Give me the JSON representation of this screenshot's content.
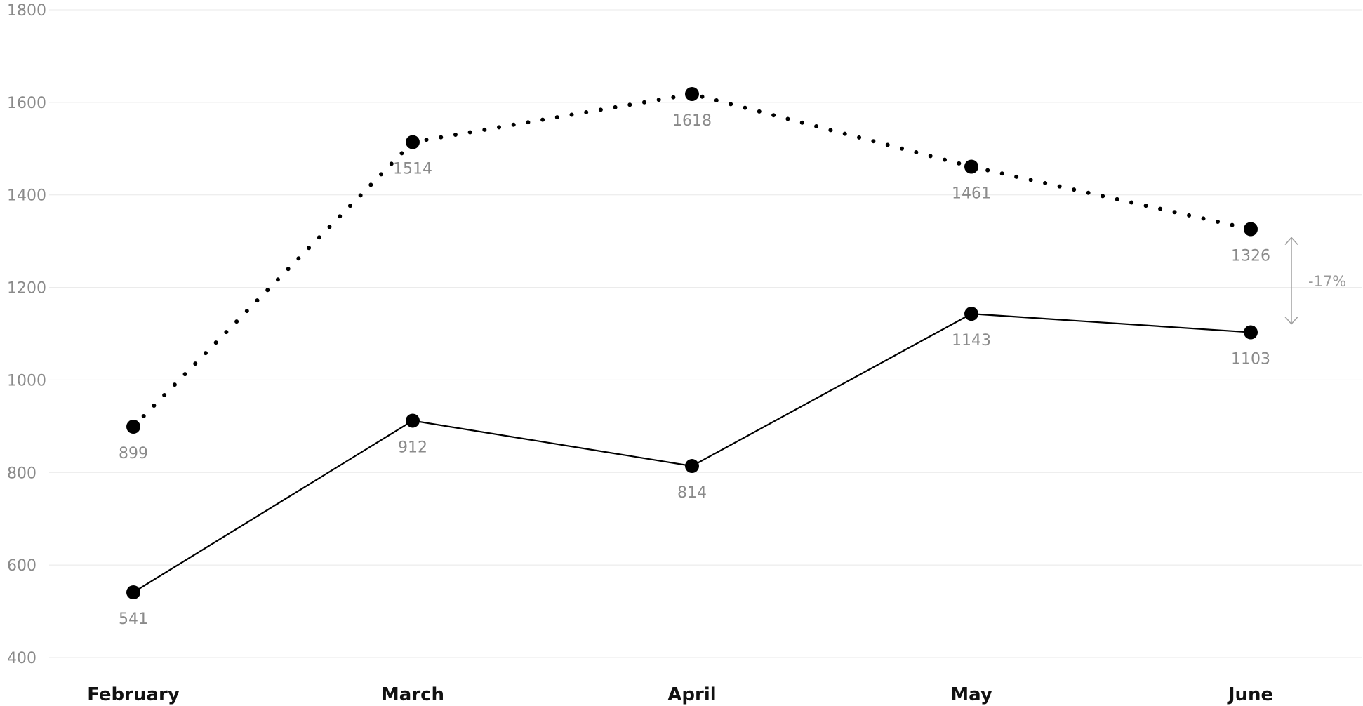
{
  "chart_data": {
    "type": "line",
    "categories": [
      "February",
      "March",
      "April",
      "May",
      "June"
    ],
    "series": [
      {
        "values": [
          899,
          1514,
          1618,
          1461,
          1326
        ],
        "style": "dotted",
        "color": "#000000"
      },
      {
        "values": [
          541,
          912,
          814,
          1143,
          1103
        ],
        "style": "solid",
        "color": "#000000"
      }
    ],
    "ylim": [
      400,
      1800
    ],
    "yticks": [
      400,
      600,
      800,
      1000,
      1200,
      1400,
      1600,
      1800
    ],
    "grid": true,
    "annotation": {
      "text": "-17%",
      "category": "June"
    },
    "colors": {
      "gridline": "#e8e8e8",
      "tick_text": "#8a8a8a",
      "label_text": "#8a8a8a",
      "annotation": "#a0a0a0"
    }
  }
}
